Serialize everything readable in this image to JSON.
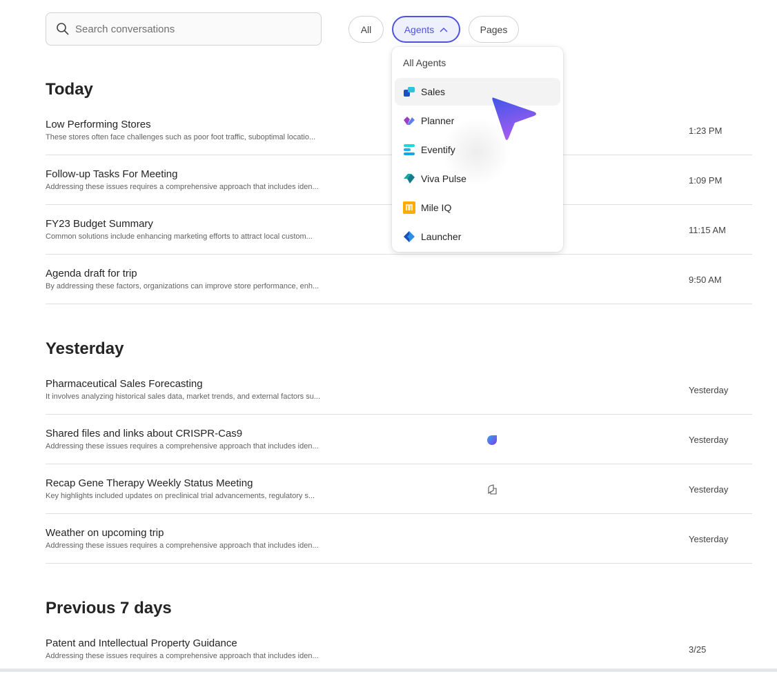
{
  "search": {
    "placeholder": "Search conversations"
  },
  "filters": [
    {
      "label": "All"
    },
    {
      "label": "Agents",
      "selected": true
    },
    {
      "label": "Pages"
    }
  ],
  "agents_menu": {
    "header": "All Agents",
    "items": [
      {
        "label": "Sales",
        "icon": "sales-icon",
        "hovered": true
      },
      {
        "label": "Planner",
        "icon": "planner-icon"
      },
      {
        "label": "Eventify",
        "icon": "eventify-icon"
      },
      {
        "label": "Viva Pulse",
        "icon": "viva-pulse-icon"
      },
      {
        "label": "Mile IQ",
        "icon": "mile-iq-icon"
      },
      {
        "label": "Launcher",
        "icon": "launcher-icon"
      }
    ]
  },
  "sections": [
    {
      "title": "Today",
      "rows": [
        {
          "title": "Low Performing Stores",
          "subtitle": "These stores often face challenges such as poor foot traffic, suboptimal locatio...",
          "time": "1:23 PM"
        },
        {
          "title": "Follow-up Tasks For Meeting",
          "subtitle": "Addressing these issues requires a comprehensive approach that includes iden...",
          "time": "1:09 PM"
        },
        {
          "title": "FY23 Budget Summary",
          "subtitle": "Common solutions include enhancing marketing efforts to attract local custom...",
          "time": "11:15 AM"
        },
        {
          "title": "Agenda draft for trip",
          "subtitle": "By addressing these factors, organizations can improve store performance, enh...",
          "time": "9:50 AM"
        }
      ]
    },
    {
      "title": "Yesterday",
      "rows": [
        {
          "title": "Pharmaceutical Sales Forecasting",
          "subtitle": "It involves analyzing historical sales data, market trends, and external factors su...",
          "time": "Yesterday"
        },
        {
          "title": "Shared files and links about CRISPR-Cas9",
          "subtitle": "Addressing these issues requires a comprehensive approach that includes iden...",
          "time": "Yesterday",
          "icon": "copilot-icon"
        },
        {
          "title": "Recap Gene Therapy Weekly Status Meeting",
          "subtitle": "Key highlights included updates on preclinical trial advancements, regulatory s...",
          "time": "Yesterday",
          "icon": "notebook-icon"
        },
        {
          "title": "Weather on upcoming trip",
          "subtitle": "Addressing these issues requires a comprehensive approach that includes iden...",
          "time": "Yesterday"
        }
      ]
    },
    {
      "title": "Previous 7 days",
      "rows": [
        {
          "title": "Patent and Intellectual Property Guidance",
          "subtitle": "Addressing these issues requires a comprehensive approach that includes iden...",
          "time": "3/25"
        }
      ]
    }
  ],
  "colors": {
    "accent": "#4f52e0",
    "selected_bg": "#eef0fd"
  }
}
